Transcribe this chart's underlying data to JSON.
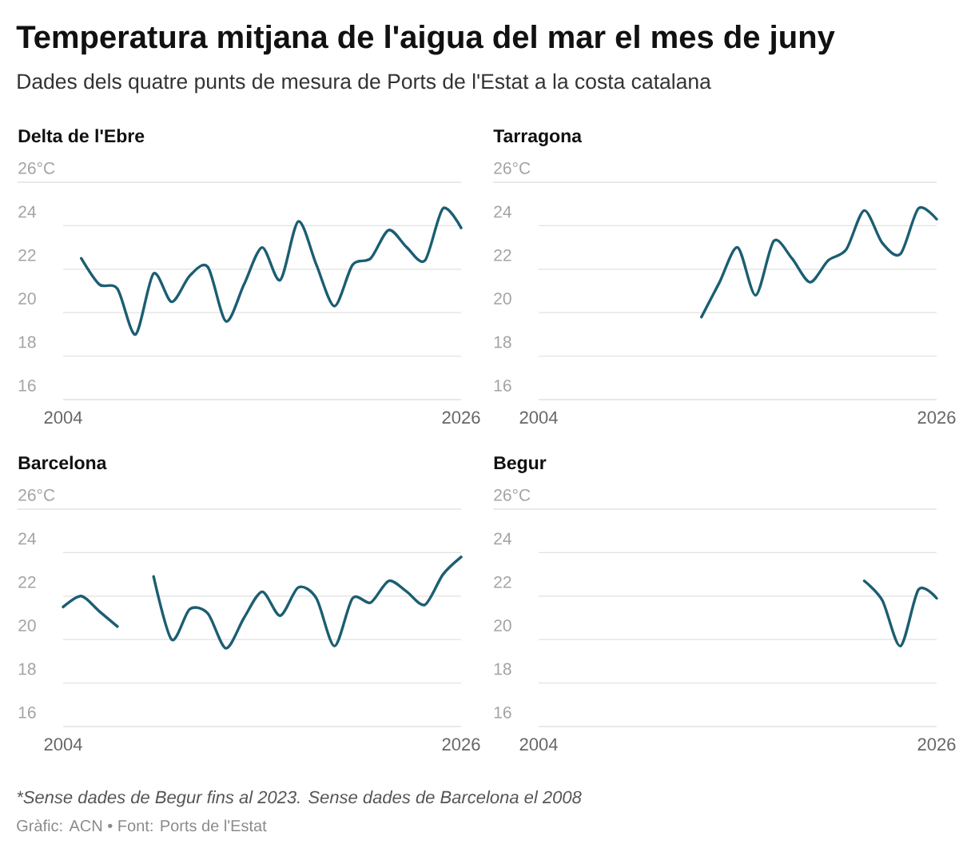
{
  "chart_data": [
    {
      "type": "other",
      "title": "Temperatura mitjana de l'aigua del mar el mes de juny",
      "subtitle": "Dades dels quatre punts de mesura de Ports de l'Estat a la costa catalana",
      "annotations": [
        "*Sense dades de Begur fins al 2023. Sense dades de Barcelona el 2008",
        "Gràfic: ACN • Font: Ports de l'Estat"
      ]
    },
    {
      "type": "line",
      "title": "Delta de l'Ebre",
      "ylabel": "°C",
      "series": [
        {
          "color": "#1b5e72",
          "x": [
            2005,
            2006,
            2007,
            2008,
            2009,
            2010,
            2011,
            2012,
            2013,
            2014,
            2015,
            2016,
            2017,
            2018,
            2019,
            2020,
            2021,
            2022,
            2023,
            2024,
            2025,
            2026
          ],
          "values": [
            22.5,
            21.3,
            21.1,
            19.0,
            21.8,
            20.5,
            21.7,
            22.1,
            19.6,
            21.3,
            23.0,
            21.5,
            24.2,
            22.2,
            20.3,
            22.2,
            22.5,
            23.8,
            23.0,
            22.4,
            24.8,
            23.9
          ]
        }
      ],
      "xlim": [
        2004,
        2026
      ],
      "xticks": [
        2004,
        2026
      ],
      "ylim": [
        16,
        26
      ],
      "yticks": [
        16,
        18,
        20,
        22,
        24,
        26
      ],
      "grid": "y"
    },
    {
      "type": "line",
      "title": "Tarragona",
      "ylabel": "°C",
      "series": [
        {
          "color": "#1b5e72",
          "x": [
            2013,
            2014,
            2015,
            2016,
            2017,
            2018,
            2019,
            2020,
            2021,
            2022,
            2023,
            2024,
            2025,
            2026
          ],
          "values": [
            19.8,
            21.4,
            23.0,
            20.8,
            23.3,
            22.5,
            21.4,
            22.4,
            22.9,
            24.7,
            23.2,
            22.7,
            24.8,
            24.3
          ]
        }
      ],
      "xlim": [
        2004,
        2026
      ],
      "xticks": [
        2004,
        2026
      ],
      "ylim": [
        16,
        26
      ],
      "yticks": [
        16,
        18,
        20,
        22,
        24,
        26
      ],
      "grid": "y"
    },
    {
      "type": "line",
      "title": "Barcelona",
      "ylabel": "°C",
      "series": [
        {
          "color": "#1b5e72",
          "x": [
            2004,
            2005,
            2006,
            2007,
            2008,
            2009,
            2010,
            2011,
            2012,
            2013,
            2014,
            2015,
            2016,
            2017,
            2018,
            2019,
            2020,
            2021,
            2022,
            2023,
            2024,
            2025,
            2026
          ],
          "values": [
            21.5,
            22.0,
            21.3,
            20.6,
            null,
            22.9,
            20.0,
            21.4,
            21.2,
            19.6,
            21.0,
            22.2,
            21.1,
            22.4,
            21.9,
            19.7,
            21.9,
            21.7,
            22.7,
            22.2,
            21.6,
            23.0,
            23.8
          ]
        }
      ],
      "xlim": [
        2004,
        2026
      ],
      "xticks": [
        2004,
        2026
      ],
      "ylim": [
        16,
        26
      ],
      "yticks": [
        16,
        18,
        20,
        22,
        24,
        26
      ],
      "grid": "y"
    },
    {
      "type": "line",
      "title": "Begur",
      "ylabel": "°C",
      "series": [
        {
          "color": "#1b5e72",
          "x": [
            2022,
            2023,
            2024,
            2025,
            2026
          ],
          "values": [
            22.7,
            21.8,
            19.7,
            22.3,
            21.9
          ]
        }
      ],
      "xlim": [
        2004,
        2026
      ],
      "xticks": [
        2004,
        2026
      ],
      "ylim": [
        16,
        26
      ],
      "yticks": [
        16,
        18,
        20,
        22,
        24,
        26
      ],
      "grid": "y"
    }
  ]
}
